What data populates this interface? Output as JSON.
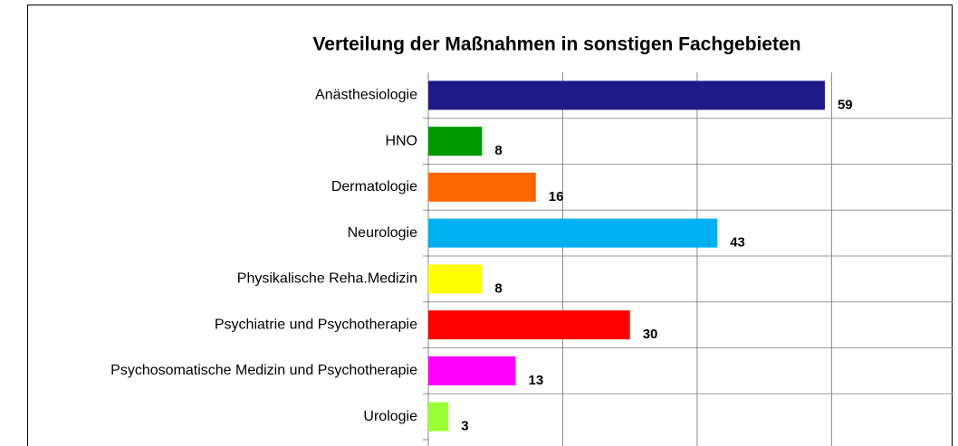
{
  "chart_data": {
    "type": "barh",
    "title": "Verteilung der Maßnahmen in sonstigen Fachgebieten",
    "categories": [
      "Anästhesiologie",
      "HNO",
      "Dermatologie",
      "Neurologie",
      "Physikalische Reha.Medizin",
      "Psychiatrie und Psychotherapie",
      "Psychosomatische Medizin und Psychotherapie",
      "Urologie"
    ],
    "values": [
      59,
      8,
      16,
      43,
      8,
      30,
      13,
      3
    ],
    "colors": [
      "#1f1a8a",
      "#009900",
      "#ff6600",
      "#00b0f0",
      "#ffff00",
      "#ff0000",
      "#ff00ff",
      "#99ff33"
    ],
    "xlim": [
      0,
      78
    ],
    "xticks": [
      0,
      20,
      40,
      60
    ],
    "grid": true
  }
}
